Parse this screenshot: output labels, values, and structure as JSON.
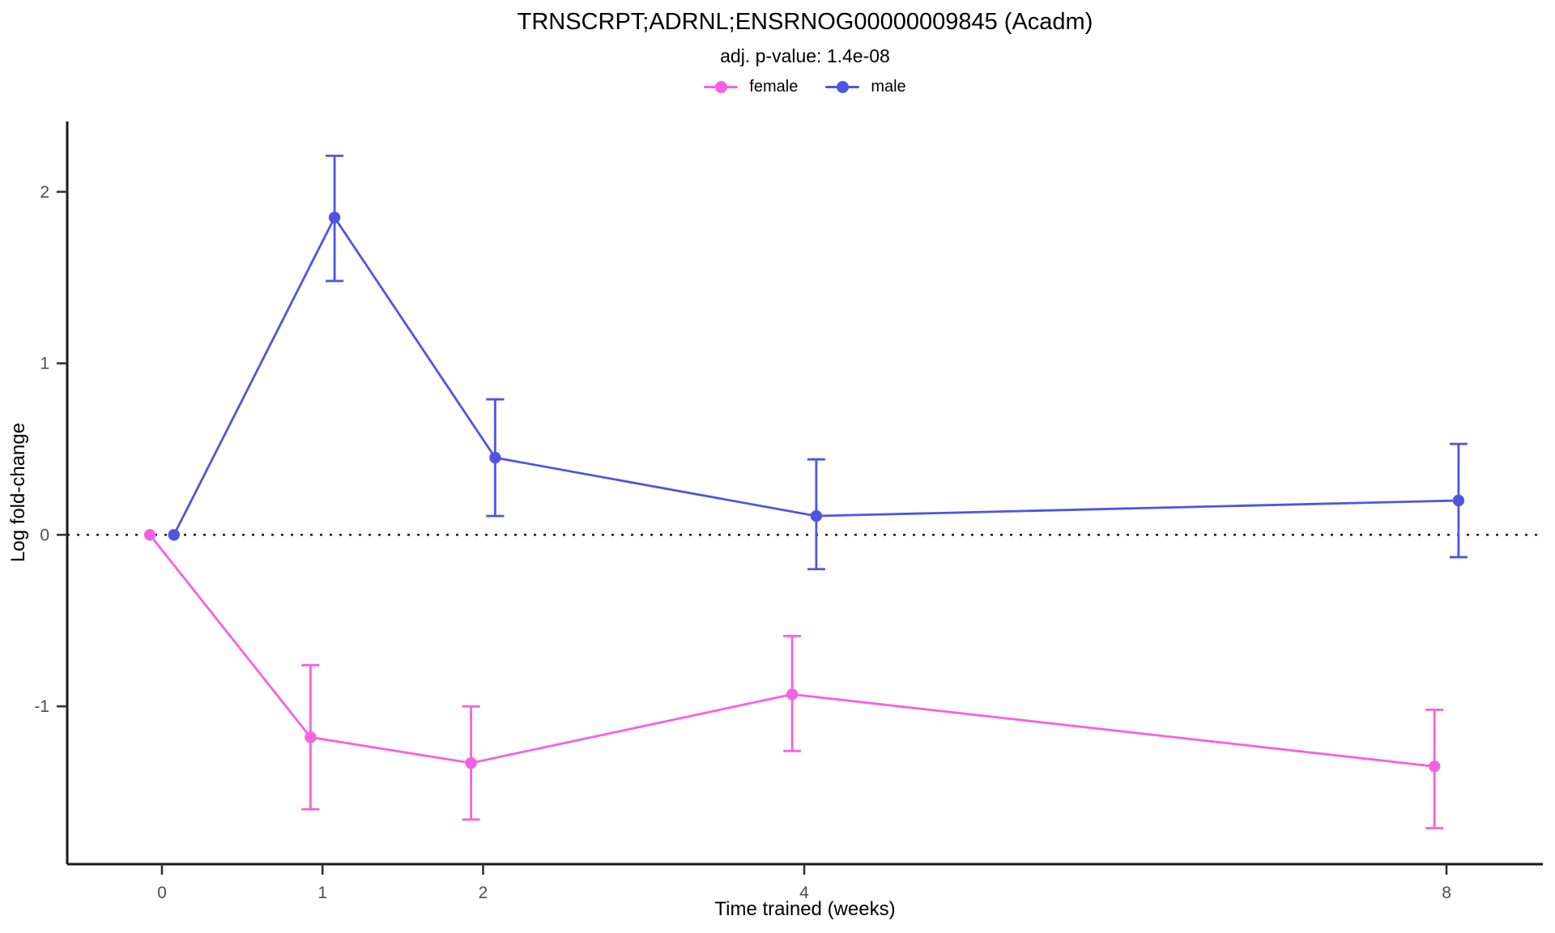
{
  "title": "TRNSCRPT;ADRNL;ENSRNOG00000009845 (Acadm)",
  "subtitle": "adj. p-value: 1.4e-08",
  "legend": [
    {
      "label": "female",
      "color": "#F661E2"
    },
    {
      "label": "male",
      "color": "#4F55E0"
    }
  ],
  "chart_data": {
    "type": "line",
    "title": "TRNSCRPT;ADRNL;ENSRNOG00000009845 (Acadm)",
    "subtitle": "adj. p-value: 1.4e-08",
    "xlabel": "Time trained (weeks)",
    "ylabel": "Log fold-change",
    "x": [
      0,
      1,
      2,
      4,
      8
    ],
    "x_ticks": [
      0,
      1,
      2,
      4,
      8
    ],
    "y_ticks": [
      2,
      1,
      0,
      -1
    ],
    "xlim": [
      -0.59,
      8.6
    ],
    "ylim": [
      -1.92,
      2.41
    ],
    "grid": false,
    "legend_position": "top",
    "zero_line": 0,
    "series": [
      {
        "name": "female",
        "color": "#F661E2",
        "dodge": -0.075,
        "values": [
          0,
          -1.18,
          -1.33,
          -0.93,
          -1.35
        ],
        "ci_low": [
          null,
          -1.6,
          -1.66,
          -1.26,
          -1.71
        ],
        "ci_high": [
          null,
          -0.76,
          -1.0,
          -0.59,
          -1.02
        ]
      },
      {
        "name": "male",
        "color": "#4F55E0",
        "dodge": 0.075,
        "values": [
          0,
          1.85,
          0.45,
          0.11,
          0.2
        ],
        "ci_low": [
          null,
          1.48,
          0.11,
          -0.2,
          -0.13
        ],
        "ci_high": [
          null,
          2.21,
          0.79,
          0.44,
          0.53
        ]
      }
    ]
  }
}
